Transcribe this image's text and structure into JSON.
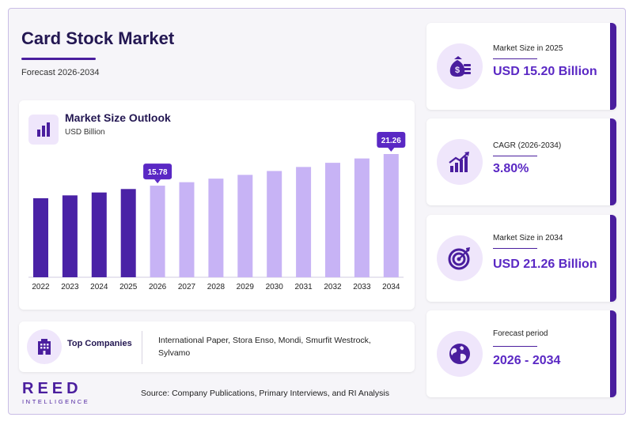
{
  "header": {
    "title": "Card Stock Market",
    "subtitle": "Forecast 2026-2034"
  },
  "chart_panel": {
    "title": "Market Size Outlook",
    "unit": "USD Billion"
  },
  "chart_data": {
    "type": "bar",
    "title": "Market Size Outlook",
    "ylabel": "USD Billion",
    "categories": [
      "2022",
      "2023",
      "2024",
      "2025",
      "2026",
      "2027",
      "2028",
      "2029",
      "2030",
      "2031",
      "2032",
      "2033",
      "2034"
    ],
    "values": [
      13.6,
      14.1,
      14.6,
      15.2,
      15.78,
      16.38,
      17.0,
      17.65,
      18.32,
      19.02,
      19.74,
      20.49,
      21.26
    ],
    "ylim": [
      0,
      22
    ],
    "historical_until": "2025",
    "data_labels": [
      {
        "category": "2026",
        "label": "15.78"
      },
      {
        "category": "2034",
        "label": "21.26"
      }
    ],
    "colors": {
      "historical": "#4a22a6",
      "forecast": "#c7b3f5",
      "label_bg": "#5a28c4"
    }
  },
  "companies": {
    "label": "Top Companies",
    "list": "International Paper, Stora Enso, Mondi, Smurfit Westrock, Sylvamo"
  },
  "branding": {
    "logo_main": "REED",
    "logo_sub": "INTELLIGENCE"
  },
  "footer": {
    "source": "Source: Company Publications, Primary Interviews, and RI Analysis"
  },
  "stats": [
    {
      "label": "Market Size in 2025",
      "value": "USD 15.20 Billion",
      "icon": "money-bag-icon"
    },
    {
      "label": "CAGR (2026-2034)",
      "value": "3.80%",
      "icon": "growth-chart-icon"
    },
    {
      "label": "Market Size in 2034",
      "value": "USD 21.26 Billion",
      "icon": "target-icon"
    },
    {
      "label": "Forecast period",
      "value": "2026 - 2034",
      "icon": "globe-icon"
    }
  ]
}
